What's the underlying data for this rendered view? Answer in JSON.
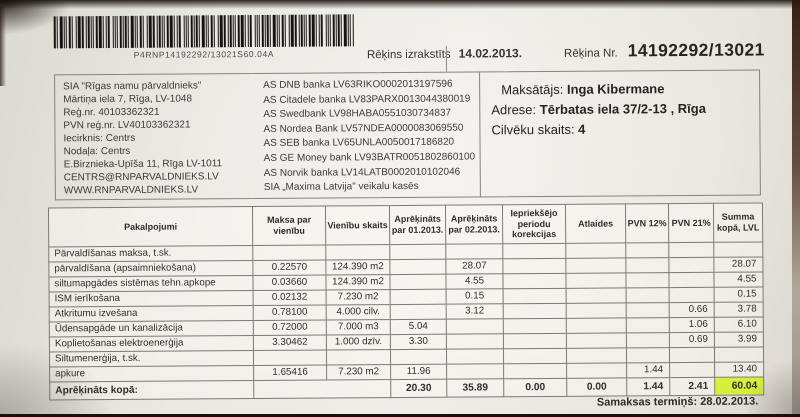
{
  "barcode": {
    "text": "P4RNP14192292/13021S60.04A"
  },
  "header": {
    "issued_label": "Rēķins izrakstīts",
    "issued_date": "14.02.2013.",
    "invoice_no_label": "Rēķina Nr.",
    "invoice_no": "14192292/13021"
  },
  "company": {
    "lines": [
      "SIA \"Rīgas namu pārvaldnieks\"",
      "Mārtiņa iela 7, Rīga, LV-1048",
      "Reģ.nr. 40103362321",
      "PVN reģ.nr. LV40103362321",
      "Iecirknis: Centrs",
      "Nodaļa:  Centrs",
      "E.Birznieka-Upīša 11, Rīga LV-1011",
      "CENTRS@RNPARVALDNIEKS.LV",
      "WWW.RNPARVALDNIEKS.LV"
    ]
  },
  "banks": {
    "lines": [
      "AS DNB banka LV63RIKO0002013197596",
      "AS Citadele banka LV83PARX0013044380019",
      "AS Swedbank LV98HABA0551030734837",
      "AS Nordea Bank LV57NDEA0000083069550",
      "AS SEB banka LV65UNLA0050017186820",
      "AS GE Money bank LV93BATR0051802860100",
      "AS Norvik banka LV14LATB0002010102046",
      "SIA „Maxima Latvija\" veikalu kasēs"
    ]
  },
  "payer": {
    "payer_label": "Maksātājs:",
    "payer_name": "Inga Kibermane",
    "address_label": "Adrese:",
    "address": "Tērbatas iela 37/2-13 , Rīga",
    "people_label": "Cilvēku skaits:",
    "people_count": "4"
  },
  "table": {
    "headers": [
      "Pakalpojumi",
      "Maksa par vienību",
      "Vienību skaits",
      "Aprēķināts par 01.2013.",
      "Aprēķināts par 02.2013.",
      "Iepriekšējo periodu korekcijas",
      "Atlaides",
      "PVN 12%",
      "PVN 21%",
      "Summa kopā, LVL"
    ],
    "rows": [
      {
        "cells": [
          "Pārvaldīšanas maksa, t.sk.",
          "",
          "",
          "",
          "",
          "",
          "",
          "",
          "",
          ""
        ]
      },
      {
        "cells": [
          "pārvaldīšana (apsaimniekošana)",
          "0.22570",
          "124.390 m2",
          "",
          "28.07",
          "",
          "",
          "",
          "",
          "28.07"
        ]
      },
      {
        "cells": [
          "siltumapgādes sistēmas tehn.apkope",
          "0.03660",
          "124.390 m2",
          "",
          "4.55",
          "",
          "",
          "",
          "",
          "4.55"
        ]
      },
      {
        "cells": [
          "ISM ierīkošana",
          "0.02132",
          "7.230 m2",
          "",
          "0.15",
          "",
          "",
          "",
          "",
          "0.15"
        ]
      },
      {
        "cells": [
          "Atkritumu izvešana",
          "0.78100",
          "4.000 cilv.",
          "",
          "3.12",
          "",
          "",
          "",
          "0.66",
          "3.78"
        ]
      },
      {
        "cells": [
          "Ūdensapgāde un  kanalizācija",
          "0.72000",
          "7.000 m3",
          "5.04",
          "",
          "",
          "",
          "",
          "1.06",
          "6.10"
        ]
      },
      {
        "cells": [
          "Koplietošanas elektroenerģija",
          "3.30462",
          "1.000 dzīv.",
          "3.30",
          "",
          "",
          "",
          "",
          "0.69",
          "3.99"
        ]
      },
      {
        "cells": [
          "Siltumenerģija, t.sk.",
          "",
          "",
          "",
          "",
          "",
          "",
          "",
          "",
          ""
        ]
      },
      {
        "cells": [
          "apkure",
          "1.65416",
          "7.230 m2",
          "11.96",
          "",
          "",
          "",
          "1.44",
          "",
          "13.40"
        ]
      }
    ],
    "total": {
      "label": "Aprēķināts kopā:",
      "cells": [
        "20.30",
        "35.89",
        "0.00",
        "0.00",
        "1.44",
        "2.41",
        "60.04"
      ]
    }
  },
  "footer": {
    "due_label": "Samaksas termiņš:",
    "due_date": "28.02.2013."
  },
  "colors": {
    "total_highlight": "#d7ee3b",
    "paper": "#eae8e2",
    "barcode_ink": "#161412"
  }
}
